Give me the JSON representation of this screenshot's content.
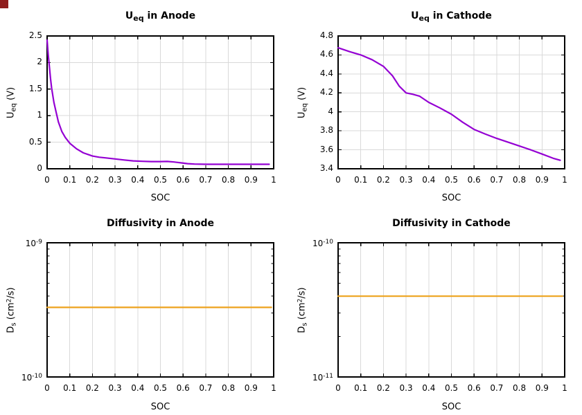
{
  "figure": {
    "background": "#ffffff",
    "axis_color": "#000000",
    "grid_color": "#d9d9d9",
    "corner_marker_color": "#8f1d1d"
  },
  "chart_data": [
    {
      "id": "ueq-anode",
      "type": "line",
      "title": "U_eq in Anode",
      "title_parts": {
        "t0": "U",
        "t1": "eq",
        "t2": " in Anode"
      },
      "xlabel": "SOC",
      "ylabel": "U_eq (V)",
      "ylabel_parts": {
        "p0": "U",
        "p1": "eq",
        "p2": " (V)",
        "p3": "",
        "p4": ""
      },
      "xlim": [
        0,
        1
      ],
      "ylim": [
        0,
        2.5
      ],
      "yscale": "linear",
      "grid_vertical": true,
      "grid_horizontal": true,
      "legend": "none",
      "line_color": "#9400d3",
      "line_width": 2.2,
      "x_ticks": [
        0,
        0.1,
        0.2,
        0.3,
        0.4,
        0.5,
        0.6,
        0.7,
        0.8,
        0.9,
        1
      ],
      "x_tick_labels": [
        "0",
        "0.1",
        "0.2",
        "0.3",
        "0.4",
        "0.5",
        "0.6",
        "0.7",
        "0.8",
        "0.9",
        "1"
      ],
      "y_ticks": [
        0,
        0.5,
        1,
        1.5,
        2,
        2.5
      ],
      "y_tick_labels": [
        {
          "base": "0",
          "exp": ""
        },
        {
          "base": "0.5",
          "exp": ""
        },
        {
          "base": "1",
          "exp": ""
        },
        {
          "base": "1.5",
          "exp": ""
        },
        {
          "base": "2",
          "exp": ""
        },
        {
          "base": "2.5",
          "exp": ""
        }
      ],
      "y_minor_ticks": [],
      "x": [
        0,
        0.005,
        0.01,
        0.015,
        0.02,
        0.03,
        0.04,
        0.05,
        0.065,
        0.08,
        0.1,
        0.13,
        0.16,
        0.2,
        0.23,
        0.26,
        0.3,
        0.34,
        0.38,
        0.42,
        0.46,
        0.5,
        0.53,
        0.56,
        0.59,
        0.62,
        0.65,
        0.7,
        0.8,
        0.9,
        0.98
      ],
      "y": [
        2.42,
        2.15,
        1.92,
        1.7,
        1.52,
        1.25,
        1.06,
        0.88,
        0.7,
        0.59,
        0.48,
        0.375,
        0.3,
        0.24,
        0.218,
        0.205,
        0.185,
        0.165,
        0.148,
        0.14,
        0.136,
        0.135,
        0.138,
        0.128,
        0.112,
        0.096,
        0.088,
        0.085,
        0.085,
        0.085,
        0.085
      ]
    },
    {
      "id": "ueq-cathode",
      "type": "line",
      "title": "U_eq in Cathode",
      "title_parts": {
        "t0": "U",
        "t1": "eq",
        "t2": " in Cathode"
      },
      "xlabel": "SOC",
      "ylabel": "U_eq (V)",
      "ylabel_parts": {
        "p0": "U",
        "p1": "eq",
        "p2": " (V)",
        "p3": "",
        "p4": ""
      },
      "xlim": [
        0,
        1
      ],
      "ylim": [
        3.4,
        4.8
      ],
      "yscale": "linear",
      "grid_vertical": true,
      "grid_horizontal": true,
      "legend": "none",
      "line_color": "#9400d3",
      "line_width": 2.2,
      "x_ticks": [
        0,
        0.1,
        0.2,
        0.3,
        0.4,
        0.5,
        0.6,
        0.7,
        0.8,
        0.9,
        1
      ],
      "x_tick_labels": [
        "0",
        "0.1",
        "0.2",
        "0.3",
        "0.4",
        "0.5",
        "0.6",
        "0.7",
        "0.8",
        "0.9",
        "1"
      ],
      "y_ticks": [
        3.4,
        3.6,
        3.8,
        4.0,
        4.2,
        4.4,
        4.6,
        4.8
      ],
      "y_tick_labels": [
        {
          "base": "3.4",
          "exp": ""
        },
        {
          "base": "3.6",
          "exp": ""
        },
        {
          "base": "3.8",
          "exp": ""
        },
        {
          "base": "4",
          "exp": ""
        },
        {
          "base": "4.2",
          "exp": ""
        },
        {
          "base": "4.4",
          "exp": ""
        },
        {
          "base": "4.6",
          "exp": ""
        },
        {
          "base": "4.8",
          "exp": ""
        }
      ],
      "y_minor_ticks": [],
      "x": [
        0,
        0.05,
        0.1,
        0.15,
        0.2,
        0.24,
        0.27,
        0.3,
        0.33,
        0.36,
        0.4,
        0.45,
        0.5,
        0.55,
        0.6,
        0.65,
        0.7,
        0.75,
        0.8,
        0.85,
        0.9,
        0.95,
        0.98
      ],
      "y": [
        4.675,
        4.635,
        4.6,
        4.55,
        4.48,
        4.38,
        4.27,
        4.2,
        4.185,
        4.165,
        4.1,
        4.04,
        3.975,
        3.89,
        3.815,
        3.765,
        3.72,
        3.68,
        3.64,
        3.6,
        3.555,
        3.51,
        3.49
      ]
    },
    {
      "id": "diffusivity-anode",
      "type": "line",
      "title": "Diffusivity in Anode",
      "title_parts": {
        "t0": "Diffusivity in Anode",
        "t1": "",
        "t2": ""
      },
      "xlabel": "SOC",
      "ylabel": "D_s (cm^2/s)",
      "ylabel_parts": {
        "p0": "D",
        "p1": "s",
        "p2": " (cm",
        "p3": "2",
        "p4": "/s)"
      },
      "xlim": [
        0,
        1
      ],
      "ylim": [
        1e-10,
        1e-09
      ],
      "yscale": "log",
      "grid_vertical": true,
      "grid_horizontal": false,
      "legend": "none",
      "line_color": "#eda21b",
      "line_width": 2.2,
      "x_ticks": [
        0,
        0.1,
        0.2,
        0.3,
        0.4,
        0.5,
        0.6,
        0.7,
        0.8,
        0.9,
        1
      ],
      "x_tick_labels": [
        "0",
        "0.1",
        "0.2",
        "0.3",
        "0.4",
        "0.5",
        "0.6",
        "0.7",
        "0.8",
        "0.9",
        "1"
      ],
      "y_ticks": [
        1e-10,
        1e-09
      ],
      "y_tick_labels": [
        {
          "base": "10",
          "exp": "-10"
        },
        {
          "base": "10",
          "exp": "-9"
        }
      ],
      "y_minor_ticks": [
        2e-10,
        3e-10,
        4e-10,
        5e-10,
        6e-10,
        7e-10,
        8e-10,
        9e-10
      ],
      "x": [
        0,
        0.99
      ],
      "y": [
        3.3e-10,
        3.3e-10
      ]
    },
    {
      "id": "diffusivity-cathode",
      "type": "line",
      "title": "Diffusivity in Cathode",
      "title_parts": {
        "t0": "Diffusivity in Cathode",
        "t1": "",
        "t2": ""
      },
      "xlabel": "SOC",
      "ylabel": "D_s (cm^2/s)",
      "ylabel_parts": {
        "p0": "D",
        "p1": "s",
        "p2": " (cm",
        "p3": "2",
        "p4": "/s)"
      },
      "xlim": [
        0,
        1
      ],
      "ylim": [
        1e-11,
        1e-10
      ],
      "yscale": "log",
      "grid_vertical": true,
      "grid_horizontal": false,
      "legend": "none",
      "line_color": "#eda21b",
      "line_width": 2.2,
      "x_ticks": [
        0,
        0.1,
        0.2,
        0.3,
        0.4,
        0.5,
        0.6,
        0.7,
        0.8,
        0.9,
        1
      ],
      "x_tick_labels": [
        "0",
        "0.1",
        "0.2",
        "0.3",
        "0.4",
        "0.5",
        "0.6",
        "0.7",
        "0.8",
        "0.9",
        "1"
      ],
      "y_ticks": [
        1e-11,
        1e-10
      ],
      "y_tick_labels": [
        {
          "base": "10",
          "exp": "-11"
        },
        {
          "base": "10",
          "exp": "-10"
        }
      ],
      "y_minor_ticks": [
        2e-11,
        3e-11,
        4e-11,
        5e-11,
        6e-11,
        7e-11,
        8e-11,
        9e-11
      ],
      "x": [
        0,
        0.99
      ],
      "y": [
        4e-11,
        4e-11
      ]
    }
  ]
}
